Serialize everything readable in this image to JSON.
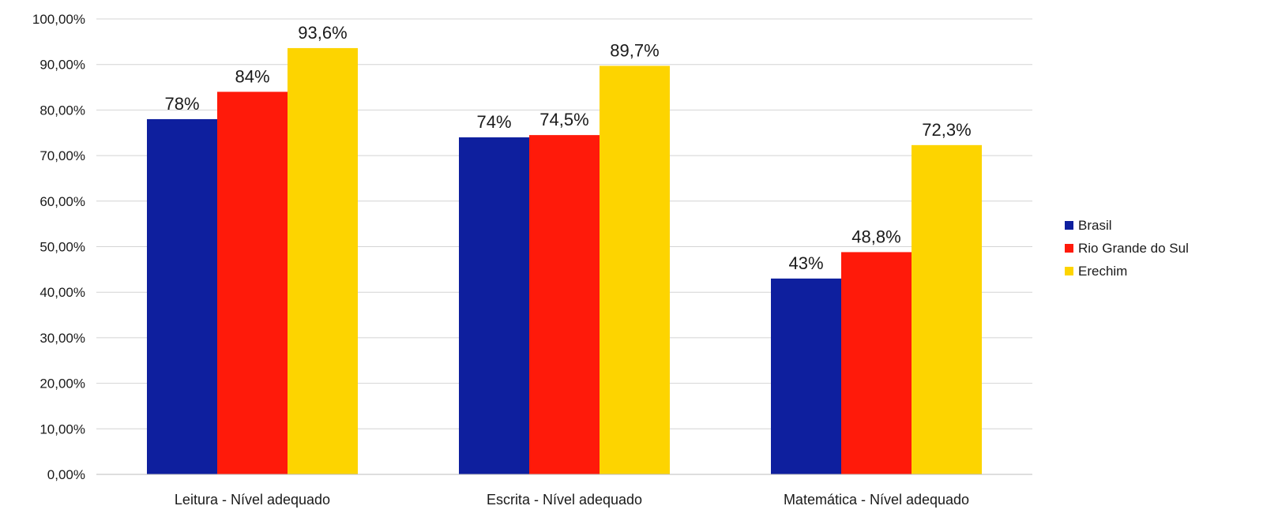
{
  "chart_data": {
    "type": "bar",
    "title": "",
    "xlabel": "",
    "ylabel": "",
    "categories": [
      "Leitura - Nível adequado",
      "Escrita - Nível adequado",
      "Matemática - Nível adequado"
    ],
    "series": [
      {
        "name": "Brasil",
        "color": "#0e1f9e",
        "values": [
          78,
          74,
          43
        ],
        "labels": [
          "78%",
          "74%",
          "43%"
        ]
      },
      {
        "name": "Rio Grande do Sul",
        "color": "#ff1a0a",
        "values": [
          84,
          74.5,
          48.8
        ],
        "labels": [
          "84%",
          "74,5%",
          "48,8%"
        ]
      },
      {
        "name": "Erechim",
        "color": "#fdd400",
        "values": [
          93.6,
          89.7,
          72.3
        ],
        "labels": [
          "93,6%",
          "89,7%",
          "72,3%"
        ]
      }
    ],
    "ylim": [
      0,
      100
    ],
    "yticks": [
      0,
      10,
      20,
      30,
      40,
      50,
      60,
      70,
      80,
      90,
      100
    ],
    "ytick_labels": [
      "0,00%",
      "10,00%",
      "20,00%",
      "30,00%",
      "40,00%",
      "50,00%",
      "60,00%",
      "70,00%",
      "80,00%",
      "90,00%",
      "100,00%"
    ],
    "grid": true,
    "legend_position": "right"
  }
}
